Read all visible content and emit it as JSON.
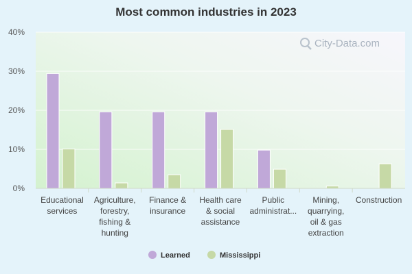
{
  "chart_data": {
    "type": "bar",
    "title": "Most common industries in 2023",
    "xlabel": "",
    "ylabel": "",
    "ylim": [
      0,
      40
    ],
    "yticks": [
      0,
      10,
      20,
      30,
      40
    ],
    "ytick_labels": [
      "0%",
      "10%",
      "20%",
      "30%",
      "40%"
    ],
    "grid": true,
    "legend_position": "bottom-center",
    "categories": [
      [
        "Educational",
        "services"
      ],
      [
        "Agriculture,",
        "forestry,",
        "fishing &",
        "hunting"
      ],
      [
        "Finance &",
        "insurance"
      ],
      [
        "Health care",
        "& social",
        "assistance"
      ],
      [
        "Public",
        "administrat..."
      ],
      [
        "Mining,",
        "quarrying,",
        "oil & gas",
        "extraction"
      ],
      [
        "Construction"
      ]
    ],
    "series": [
      {
        "name": "Learned",
        "color": "#c0a8d8",
        "values": [
          29.4,
          19.6,
          19.6,
          19.6,
          9.8,
          0,
          0
        ]
      },
      {
        "name": "Mississippi",
        "color": "#c6d9a6",
        "values": [
          10.1,
          1.4,
          3.5,
          15.1,
          4.9,
          0.6,
          6.3
        ]
      }
    ]
  },
  "watermark": {
    "text": "City-Data.com",
    "icon": "magnifier-icon"
  }
}
